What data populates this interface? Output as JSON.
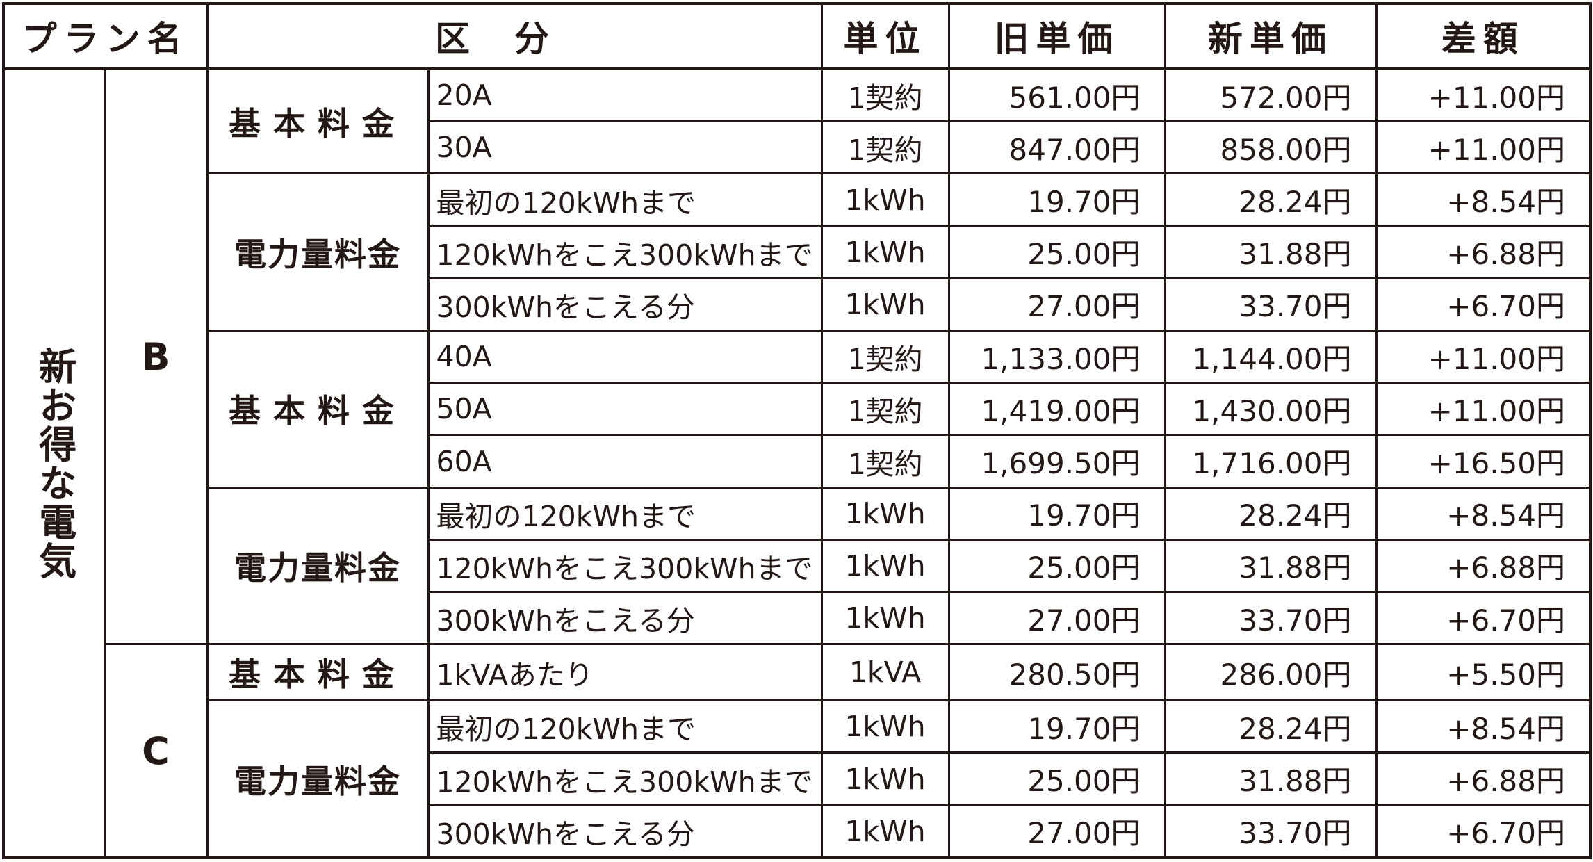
{
  "header": {
    "plan": "プラン名",
    "category": "区分",
    "unit": "単位",
    "old_price": "旧単価",
    "new_price": "新単価",
    "difference": "差額"
  },
  "plan_name": "新お得な電気",
  "groups": {
    "B": {
      "code": "B",
      "base_a": {
        "label": "基本料金",
        "rows": [
          {
            "sub": "20A",
            "unit": "1契約",
            "old": "561.00円",
            "new": "572.00円",
            "diff": "+11.00円"
          },
          {
            "sub": "30A",
            "unit": "1契約",
            "old": "847.00円",
            "new": "858.00円",
            "diff": "+11.00円"
          }
        ]
      },
      "energy_a": {
        "label": "電力量料金",
        "rows": [
          {
            "sub": "最初の120kWhまで",
            "unit": "1kWh",
            "old": "19.70円",
            "new": "28.24円",
            "diff": "+8.54円"
          },
          {
            "sub": "120kWhをこえ300kWhまで",
            "unit": "1kWh",
            "old": "25.00円",
            "new": "31.88円",
            "diff": "+6.88円"
          },
          {
            "sub": "300kWhをこえる分",
            "unit": "1kWh",
            "old": "27.00円",
            "new": "33.70円",
            "diff": "+6.70円"
          }
        ]
      },
      "base_b": {
        "label": "基本料金",
        "rows": [
          {
            "sub": "40A",
            "unit": "1契約",
            "old": "1,133.00円",
            "new": "1,144.00円",
            "diff": "+11.00円"
          },
          {
            "sub": "50A",
            "unit": "1契約",
            "old": "1,419.00円",
            "new": "1,430.00円",
            "diff": "+11.00円"
          },
          {
            "sub": "60A",
            "unit": "1契約",
            "old": "1,699.50円",
            "new": "1,716.00円",
            "diff": "+16.50円"
          }
        ]
      },
      "energy_b": {
        "label": "電力量料金",
        "rows": [
          {
            "sub": "最初の120kWhまで",
            "unit": "1kWh",
            "old": "19.70円",
            "new": "28.24円",
            "diff": "+8.54円"
          },
          {
            "sub": "120kWhをこえ300kWhまで",
            "unit": "1kWh",
            "old": "25.00円",
            "new": "31.88円",
            "diff": "+6.88円"
          },
          {
            "sub": "300kWhをこえる分",
            "unit": "1kWh",
            "old": "27.00円",
            "new": "33.70円",
            "diff": "+6.70円"
          }
        ]
      }
    },
    "C": {
      "code": "C",
      "base": {
        "label": "基本料金",
        "rows": [
          {
            "sub": "1kVAあたり",
            "unit": "1kVA",
            "old": "280.50円",
            "new": "286.00円",
            "diff": "+5.50円"
          }
        ]
      },
      "energy": {
        "label": "電力量料金",
        "rows": [
          {
            "sub": "最初の120kWhまで",
            "unit": "1kWh",
            "old": "19.70円",
            "new": "28.24円",
            "diff": "+8.54円"
          },
          {
            "sub": "120kWhをこえ300kWhまで",
            "unit": "1kWh",
            "old": "25.00円",
            "new": "31.88円",
            "diff": "+6.88円"
          },
          {
            "sub": "300kWhをこえる分",
            "unit": "1kWh",
            "old": "27.00円",
            "new": "33.70円",
            "diff": "+6.70円"
          }
        ]
      }
    }
  }
}
